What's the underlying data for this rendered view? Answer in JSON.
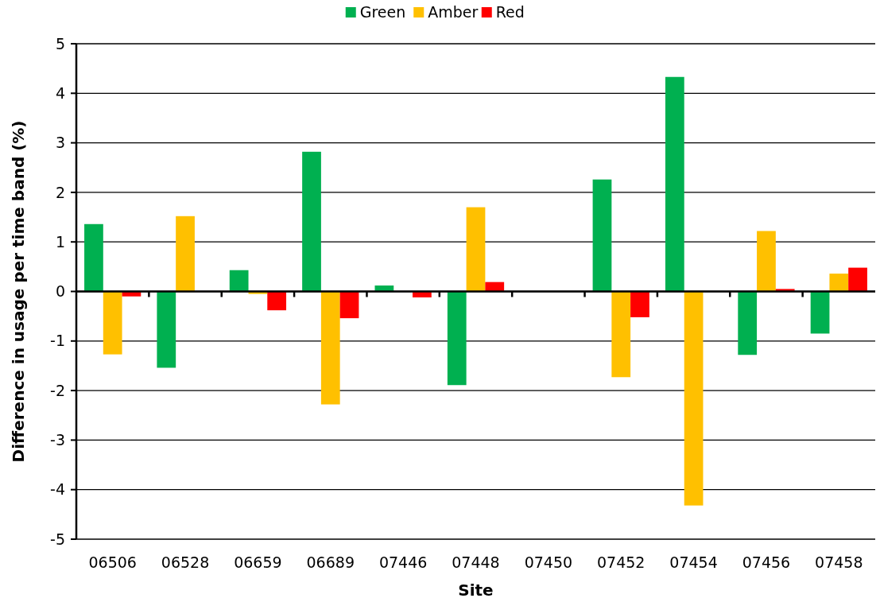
{
  "chart_data": {
    "type": "bar",
    "xlabel": "Site",
    "ylabel": "Difference in usage per time band (%)",
    "categories": [
      "06506",
      "06528",
      "06659",
      "06689",
      "07446",
      "07448",
      "07450",
      "07452",
      "07454",
      "07456",
      "07458"
    ],
    "series": [
      {
        "name": "Green",
        "color": "#00b050",
        "values": [
          1.36,
          -1.54,
          0.43,
          2.82,
          0.12,
          -1.89,
          0,
          2.26,
          4.33,
          -1.28,
          -0.85
        ]
      },
      {
        "name": "Amber",
        "color": "#ffc000",
        "values": [
          -1.27,
          1.52,
          -0.05,
          -2.28,
          0,
          1.7,
          0,
          -1.73,
          -4.32,
          1.22,
          0.36
        ]
      },
      {
        "name": "Red",
        "color": "#ff0000",
        "values": [
          -0.1,
          0,
          -0.38,
          -0.54,
          -0.12,
          0.19,
          0,
          -0.52,
          0,
          0.05,
          0.48
        ]
      }
    ],
    "ylim": [
      -5,
      5
    ],
    "yticks": [
      -5,
      -4,
      -3,
      -2,
      -1,
      0,
      1,
      2,
      3,
      4,
      5
    ],
    "grid": "y",
    "legend": "top"
  }
}
